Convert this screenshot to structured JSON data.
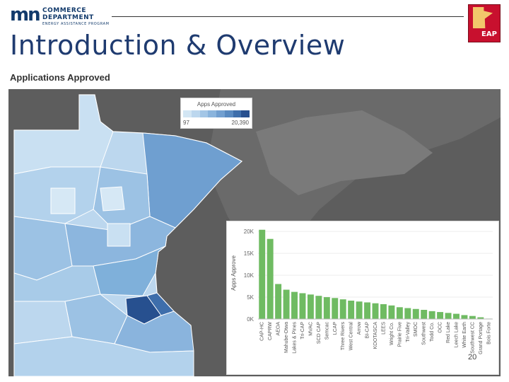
{
  "header": {
    "logo_mark": "mn",
    "logo_line1": "COMMERCE",
    "logo_line2": "DEPARTMENT",
    "logo_line3": "ENERGY ASSISTANCE PROGRAM",
    "badge_text": "EAP"
  },
  "title": "Introduction & Overview",
  "viz_title": "Applications Approved",
  "legend": {
    "title": "Apps Approved",
    "min_label": "97",
    "max_label": "20,390",
    "colors": [
      "#d3e6f4",
      "#bcd7ee",
      "#a3c6e6",
      "#8ab4dd",
      "#719fd0",
      "#5889c0",
      "#3e6eab",
      "#27508f"
    ]
  },
  "chart_data": {
    "type": "bar",
    "ylabel": "Apps Approve",
    "ylim": [
      0,
      21000
    ],
    "yticks": [
      "0K",
      "5K",
      "10K",
      "15K",
      "20K"
    ],
    "color": "#6fbb62",
    "categories": [
      "CAP-HC",
      "CAPRW",
      "AEOA",
      "Mahube-Otwa",
      "Lakes & Pines",
      "Tri-CAP",
      "MVAC",
      "SCD CAP",
      "Semcac",
      "LCAP",
      "Three Rivers",
      "West Central",
      "Arrow",
      "BI-CAP",
      "KOOTASCA",
      "LEES",
      "Wright Co.",
      "Prairie Five",
      "Tri-Valley",
      "SMOC",
      "Southwest",
      "Todd Co.",
      "OCC",
      "Red Lake",
      "Leech Lake",
      "White Earth",
      "Southwest CC",
      "Grand Portage",
      "Bois Forte"
    ],
    "values": [
      20390,
      18300,
      8000,
      6700,
      6200,
      5900,
      5600,
      5300,
      5000,
      4800,
      4500,
      4200,
      4000,
      3800,
      3600,
      3400,
      3100,
      2700,
      2500,
      2300,
      2100,
      1800,
      1600,
      1400,
      1200,
      900,
      700,
      400,
      97
    ]
  },
  "page_number": "20"
}
